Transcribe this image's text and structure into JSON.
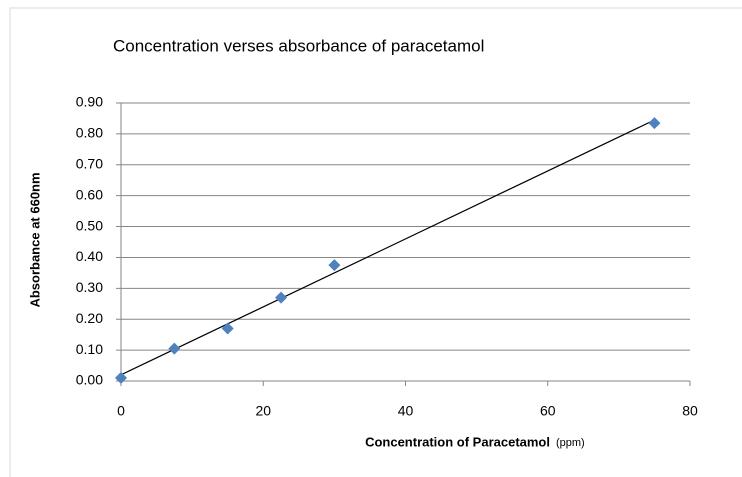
{
  "chart_data": {
    "type": "scatter",
    "title": "Concentration verses absorbance of paracetamol",
    "x_label": "Concentration of Paracetamol",
    "x_label_unit": "(ppm)",
    "y_label": "Absorbance at 660nm",
    "color": "#4f81bd",
    "x": [
      0,
      7.5,
      15,
      22.5,
      30,
      75
    ],
    "values": [
      0.01,
      0.105,
      0.17,
      0.27,
      0.375,
      0.835
    ],
    "trendline": {
      "x": [
        0,
        75
      ],
      "values": [
        0.02,
        0.845
      ],
      "color": "#000000"
    },
    "xlim": [
      0,
      80
    ],
    "xticks": [
      0,
      20,
      40,
      60,
      80
    ],
    "ylim": [
      0,
      0.9
    ],
    "yticks": [
      {
        "value": 0,
        "label": "0.00"
      },
      {
        "value": 0.1,
        "label": "0.10"
      },
      {
        "value": 0.2,
        "label": "0.20"
      },
      {
        "value": 0.3,
        "label": "0.30"
      },
      {
        "value": 0.4,
        "label": "0.40"
      },
      {
        "value": 0.5,
        "label": "0.50"
      },
      {
        "value": 0.6,
        "label": "0.60"
      },
      {
        "value": 0.7,
        "label": "0.70"
      },
      {
        "value": 0.8,
        "label": "0.80"
      },
      {
        "value": 0.9,
        "label": "0.90"
      }
    ],
    "grid": true
  }
}
